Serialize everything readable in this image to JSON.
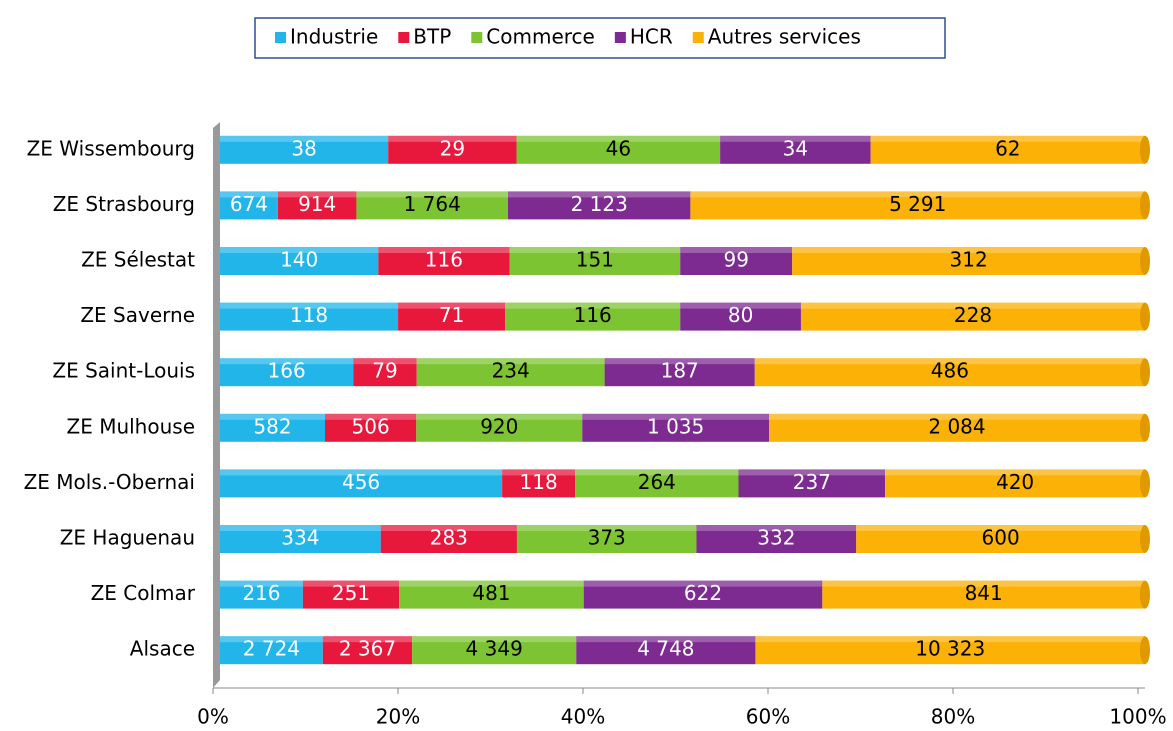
{
  "chart_data": {
    "type": "bar",
    "orientation": "horizontal",
    "stacking": "percent",
    "categories": [
      "ZE Wissembourg",
      "ZE Strasbourg",
      "ZE Sélestat",
      "ZE Saverne",
      "ZE Saint-Louis",
      "ZE Mulhouse",
      "ZE Mols.-Obernai",
      "ZE Haguenau",
      "ZE Colmar",
      "Alsace"
    ],
    "series": [
      {
        "name": "Industrie",
        "color": "#21b5ea",
        "label_color": "#ffffff",
        "values": [
          38,
          674,
          140,
          118,
          166,
          582,
          456,
          334,
          216,
          2724
        ],
        "value_labels": [
          "38",
          "674",
          "140",
          "118",
          "166",
          "582",
          "456",
          "334",
          "216",
          "2 724"
        ]
      },
      {
        "name": "BTP",
        "color": "#e8173c",
        "label_color": "#ffffff",
        "values": [
          29,
          914,
          116,
          71,
          79,
          506,
          118,
          283,
          251,
          2367
        ],
        "value_labels": [
          "29",
          "914",
          "116",
          "71",
          "79",
          "506",
          "118",
          "283",
          "251",
          "2 367"
        ]
      },
      {
        "name": "Commerce",
        "color": "#7cc431",
        "label_color": "#000000",
        "values": [
          46,
          1764,
          151,
          116,
          234,
          920,
          264,
          373,
          481,
          4349
        ],
        "value_labels": [
          "46",
          "1 764",
          "151",
          "116",
          "234",
          "920",
          "264",
          "373",
          "481",
          "4 349"
        ]
      },
      {
        "name": "HCR",
        "color": "#7d2a91",
        "label_color": "#ffffff",
        "values": [
          34,
          2123,
          99,
          80,
          187,
          1035,
          237,
          332,
          622,
          4748
        ],
        "value_labels": [
          "34",
          "2 123",
          "99",
          "80",
          "187",
          "1 035",
          "237",
          "332",
          "622",
          "4 748"
        ]
      },
      {
        "name": "Autres services",
        "color": "#fbb106",
        "label_color": "#000000",
        "values": [
          62,
          5291,
          312,
          228,
          486,
          2084,
          420,
          600,
          841,
          10323
        ],
        "value_labels": [
          "62",
          "5 291",
          "312",
          "228",
          "486",
          "2 084",
          "420",
          "600",
          "841",
          "10 323"
        ]
      }
    ],
    "xlim": [
      0,
      100
    ],
    "xticks": [
      {
        "value": 0,
        "label": "0%"
      },
      {
        "value": 20,
        "label": "20%"
      },
      {
        "value": 40,
        "label": "40%"
      },
      {
        "value": 60,
        "label": "60%"
      },
      {
        "value": 80,
        "label": "80%"
      },
      {
        "value": 100,
        "label": "100%"
      }
    ],
    "legend": "top"
  }
}
